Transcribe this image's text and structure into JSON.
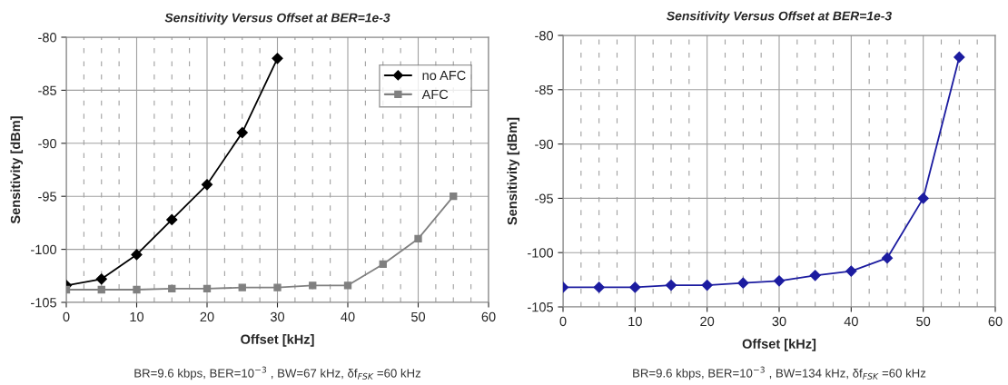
{
  "chart_data": [
    {
      "type": "line",
      "title": "Sensitivity Versus Offset at BER=1e-3",
      "xlabel": "Offset [kHz]",
      "ylabel": "Sensitivity [dBm]",
      "x": [
        0,
        5,
        10,
        15,
        20,
        25,
        30,
        35,
        40,
        45,
        50,
        55
      ],
      "series": [
        {
          "name": "no AFC",
          "color": "#000000",
          "marker": "diamond",
          "values": [
            -103.4,
            -102.8,
            -100.5,
            -97.2,
            -93.9,
            -89.0,
            -82.0,
            null,
            null,
            null,
            null,
            null
          ]
        },
        {
          "name": "AFC",
          "color": "#808080",
          "marker": "square",
          "values": [
            -103.8,
            -103.8,
            -103.8,
            -103.7,
            -103.7,
            -103.6,
            -103.6,
            -103.4,
            -103.4,
            -101.4,
            -99.0,
            -95.0
          ]
        }
      ],
      "xlim": [
        0,
        60
      ],
      "xticks": [
        0,
        10,
        20,
        30,
        40,
        50,
        60
      ],
      "ylim": [
        -105,
        -80
      ],
      "yticks": [
        -105,
        -100,
        -95,
        -90,
        -85,
        -80
      ],
      "grid": true,
      "legend": "top right",
      "line_style": "solid",
      "annotations": [
        "BR=9.6 kbps, BER=10$^{−3}$ , BW=67 kHz, δf$_{FSK}$ =60 kHz"
      ]
    },
    {
      "type": "line",
      "title": "Sensitivity Versus Offset at BER=1e-3",
      "xlabel": "Offset [kHz]",
      "ylabel": "Sensitivity [dBm]",
      "x": [
        0,
        5,
        10,
        15,
        20,
        25,
        30,
        35,
        40,
        45,
        50,
        55
      ],
      "series": [
        {
          "color": "#1c1ca0",
          "marker": "diamond",
          "values": [
            -103.2,
            -103.2,
            -103.2,
            -103.0,
            -103.0,
            -102.8,
            -102.6,
            -102.1,
            -101.7,
            -100.5,
            -95.0,
            -82.0
          ]
        }
      ],
      "xlim": [
        0,
        60
      ],
      "xticks": [
        0,
        10,
        20,
        30,
        40,
        50,
        60
      ],
      "ylim": [
        -105,
        -80
      ],
      "yticks": [
        -105,
        -100,
        -95,
        -90,
        -85,
        -80
      ],
      "grid": true,
      "line_style": "solid",
      "annotations": [
        "BR=9.6 kbps, BER=10$^{−3}$ , BW=134 kHz, δf$_{FSK}$ =60 kHz"
      ]
    }
  ]
}
